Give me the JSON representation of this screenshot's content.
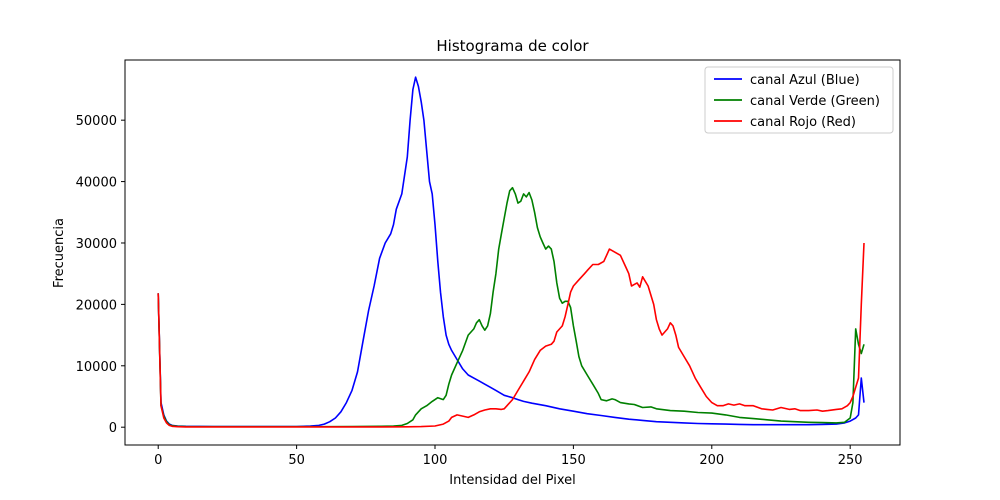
{
  "chart_data": {
    "type": "line",
    "title": "Histograma de color",
    "xlabel": "Intensidad del Pixel",
    "ylabel": "Frecuencia",
    "xlim": [
      -12,
      268
    ],
    "ylim": [
      -2900,
      59800
    ],
    "xticks": [
      0,
      50,
      100,
      150,
      200,
      250
    ],
    "yticks": [
      0,
      10000,
      20000,
      30000,
      40000,
      50000
    ],
    "grid": false,
    "legend_position": "top-right",
    "series": [
      {
        "name": "canal Azul (Blue)",
        "color": "#0000ff",
        "points": [
          [
            0,
            21800
          ],
          [
            1,
            4000
          ],
          [
            2,
            2000
          ],
          [
            3,
            1000
          ],
          [
            4,
            500
          ],
          [
            5,
            300
          ],
          [
            7,
            200
          ],
          [
            10,
            150
          ],
          [
            20,
            100
          ],
          [
            30,
            100
          ],
          [
            40,
            100
          ],
          [
            50,
            120
          ],
          [
            55,
            200
          ],
          [
            58,
            300
          ],
          [
            60,
            500
          ],
          [
            62,
            900
          ],
          [
            64,
            1500
          ],
          [
            66,
            2500
          ],
          [
            68,
            4000
          ],
          [
            70,
            6000
          ],
          [
            72,
            9000
          ],
          [
            74,
            14000
          ],
          [
            76,
            19000
          ],
          [
            78,
            23000
          ],
          [
            80,
            27500
          ],
          [
            82,
            30000
          ],
          [
            84,
            31500
          ],
          [
            85,
            33000
          ],
          [
            86,
            35500
          ],
          [
            88,
            38000
          ],
          [
            90,
            44000
          ],
          [
            91,
            50000
          ],
          [
            92,
            55000
          ],
          [
            93,
            57000
          ],
          [
            94,
            55500
          ],
          [
            95,
            53000
          ],
          [
            96,
            50000
          ],
          [
            97,
            45000
          ],
          [
            98,
            40000
          ],
          [
            99,
            38000
          ],
          [
            100,
            33000
          ],
          [
            101,
            27000
          ],
          [
            102,
            22000
          ],
          [
            103,
            18000
          ],
          [
            104,
            15000
          ],
          [
            105,
            13500
          ],
          [
            106,
            12500
          ],
          [
            108,
            11000
          ],
          [
            110,
            9500
          ],
          [
            112,
            8500
          ],
          [
            114,
            8000
          ],
          [
            116,
            7500
          ],
          [
            118,
            7000
          ],
          [
            120,
            6500
          ],
          [
            122,
            6000
          ],
          [
            125,
            5200
          ],
          [
            128,
            4800
          ],
          [
            130,
            4500
          ],
          [
            132,
            4200
          ],
          [
            135,
            3900
          ],
          [
            140,
            3500
          ],
          [
            145,
            3000
          ],
          [
            150,
            2600
          ],
          [
            155,
            2200
          ],
          [
            160,
            1900
          ],
          [
            165,
            1600
          ],
          [
            170,
            1300
          ],
          [
            175,
            1100
          ],
          [
            180,
            900
          ],
          [
            185,
            800
          ],
          [
            190,
            700
          ],
          [
            195,
            600
          ],
          [
            200,
            550
          ],
          [
            205,
            500
          ],
          [
            210,
            450
          ],
          [
            215,
            400
          ],
          [
            220,
            400
          ],
          [
            225,
            400
          ],
          [
            230,
            400
          ],
          [
            235,
            400
          ],
          [
            240,
            450
          ],
          [
            245,
            500
          ],
          [
            248,
            700
          ],
          [
            250,
            1000
          ],
          [
            252,
            1500
          ],
          [
            253,
            2000
          ],
          [
            254,
            8000
          ],
          [
            255,
            4000
          ]
        ]
      },
      {
        "name": "canal Verde (Green)",
        "color": "#008000",
        "points": [
          [
            0,
            21800
          ],
          [
            1,
            3500
          ],
          [
            2,
            1800
          ],
          [
            3,
            900
          ],
          [
            4,
            400
          ],
          [
            5,
            250
          ],
          [
            7,
            150
          ],
          [
            10,
            100
          ],
          [
            20,
            80
          ],
          [
            30,
            80
          ],
          [
            40,
            80
          ],
          [
            50,
            80
          ],
          [
            60,
            80
          ],
          [
            70,
            100
          ],
          [
            80,
            150
          ],
          [
            85,
            200
          ],
          [
            88,
            300
          ],
          [
            90,
            600
          ],
          [
            92,
            1200
          ],
          [
            93,
            2000
          ],
          [
            95,
            3000
          ],
          [
            97,
            3500
          ],
          [
            99,
            4200
          ],
          [
            101,
            4800
          ],
          [
            103,
            4500
          ],
          [
            104,
            5200
          ],
          [
            105,
            7000
          ],
          [
            106,
            8500
          ],
          [
            108,
            10500
          ],
          [
            110,
            12500
          ],
          [
            112,
            15000
          ],
          [
            114,
            16000
          ],
          [
            115,
            17000
          ],
          [
            116,
            17500
          ],
          [
            117,
            16500
          ],
          [
            118,
            15800
          ],
          [
            119,
            16500
          ],
          [
            120,
            18500
          ],
          [
            121,
            22000
          ],
          [
            122,
            25000
          ],
          [
            123,
            29000
          ],
          [
            124,
            31500
          ],
          [
            125,
            34000
          ],
          [
            126,
            36500
          ],
          [
            127,
            38500
          ],
          [
            128,
            39000
          ],
          [
            129,
            38000
          ],
          [
            130,
            36500
          ],
          [
            131,
            36800
          ],
          [
            132,
            38000
          ],
          [
            133,
            37500
          ],
          [
            134,
            38200
          ],
          [
            135,
            37000
          ],
          [
            136,
            35000
          ],
          [
            137,
            32500
          ],
          [
            138,
            31000
          ],
          [
            139,
            30000
          ],
          [
            140,
            29000
          ],
          [
            141,
            29500
          ],
          [
            142,
            29000
          ],
          [
            143,
            27000
          ],
          [
            144,
            23500
          ],
          [
            145,
            21000
          ],
          [
            146,
            20200
          ],
          [
            147,
            20500
          ],
          [
            148,
            20500
          ],
          [
            149,
            19500
          ],
          [
            150,
            16500
          ],
          [
            151,
            14000
          ],
          [
            152,
            11500
          ],
          [
            153,
            10000
          ],
          [
            155,
            8500
          ],
          [
            157,
            7000
          ],
          [
            159,
            5500
          ],
          [
            160,
            4500
          ],
          [
            162,
            4300
          ],
          [
            164,
            4600
          ],
          [
            165,
            4500
          ],
          [
            167,
            4000
          ],
          [
            170,
            3800
          ],
          [
            172,
            3700
          ],
          [
            175,
            3200
          ],
          [
            178,
            3300
          ],
          [
            180,
            3000
          ],
          [
            185,
            2700
          ],
          [
            190,
            2600
          ],
          [
            195,
            2400
          ],
          [
            200,
            2300
          ],
          [
            205,
            2000
          ],
          [
            210,
            1600
          ],
          [
            215,
            1400
          ],
          [
            220,
            1200
          ],
          [
            225,
            1000
          ],
          [
            230,
            900
          ],
          [
            235,
            800
          ],
          [
            240,
            750
          ],
          [
            245,
            700
          ],
          [
            248,
            800
          ],
          [
            250,
            1500
          ],
          [
            251,
            4000
          ],
          [
            252,
            16000
          ],
          [
            253,
            13500
          ],
          [
            254,
            12000
          ],
          [
            255,
            13500
          ]
        ]
      },
      {
        "name": "canal Rojo (Red)",
        "color": "#ff0000",
        "points": [
          [
            0,
            21800
          ],
          [
            1,
            3500
          ],
          [
            2,
            1500
          ],
          [
            3,
            700
          ],
          [
            4,
            300
          ],
          [
            5,
            150
          ],
          [
            7,
            80
          ],
          [
            10,
            50
          ],
          [
            20,
            40
          ],
          [
            30,
            40
          ],
          [
            40,
            40
          ],
          [
            50,
            40
          ],
          [
            60,
            40
          ],
          [
            70,
            40
          ],
          [
            80,
            50
          ],
          [
            90,
            60
          ],
          [
            95,
            100
          ],
          [
            100,
            200
          ],
          [
            103,
            500
          ],
          [
            105,
            1000
          ],
          [
            106,
            1600
          ],
          [
            108,
            2000
          ],
          [
            110,
            1800
          ],
          [
            112,
            1600
          ],
          [
            114,
            2000
          ],
          [
            116,
            2500
          ],
          [
            118,
            2800
          ],
          [
            120,
            3000
          ],
          [
            122,
            3000
          ],
          [
            124,
            2900
          ],
          [
            125,
            3000
          ],
          [
            126,
            3500
          ],
          [
            128,
            4500
          ],
          [
            130,
            6000
          ],
          [
            132,
            7500
          ],
          [
            134,
            9000
          ],
          [
            136,
            11000
          ],
          [
            138,
            12500
          ],
          [
            140,
            13200
          ],
          [
            142,
            13500
          ],
          [
            143,
            14000
          ],
          [
            144,
            15500
          ],
          [
            145,
            16000
          ],
          [
            146,
            16500
          ],
          [
            147,
            18000
          ],
          [
            148,
            20000
          ],
          [
            149,
            22000
          ],
          [
            150,
            23000
          ],
          [
            152,
            24000
          ],
          [
            154,
            25000
          ],
          [
            155,
            25500
          ],
          [
            157,
            26500
          ],
          [
            159,
            26500
          ],
          [
            161,
            27000
          ],
          [
            162,
            28000
          ],
          [
            163,
            29000
          ],
          [
            165,
            28500
          ],
          [
            167,
            28000
          ],
          [
            169,
            26000
          ],
          [
            170,
            25000
          ],
          [
            171,
            23000
          ],
          [
            173,
            23500
          ],
          [
            174,
            22800
          ],
          [
            175,
            24500
          ],
          [
            177,
            23000
          ],
          [
            179,
            20000
          ],
          [
            180,
            17500
          ],
          [
            181,
            16000
          ],
          [
            182,
            15000
          ],
          [
            184,
            16000
          ],
          [
            185,
            17000
          ],
          [
            186,
            16500
          ],
          [
            187,
            15000
          ],
          [
            188,
            13000
          ],
          [
            190,
            11500
          ],
          [
            192,
            10000
          ],
          [
            194,
            8000
          ],
          [
            196,
            6500
          ],
          [
            198,
            5000
          ],
          [
            200,
            4000
          ],
          [
            202,
            3500
          ],
          [
            204,
            3500
          ],
          [
            206,
            3800
          ],
          [
            208,
            3600
          ],
          [
            210,
            3800
          ],
          [
            212,
            3500
          ],
          [
            215,
            3500
          ],
          [
            218,
            3000
          ],
          [
            220,
            2900
          ],
          [
            222,
            2800
          ],
          [
            225,
            3200
          ],
          [
            228,
            2900
          ],
          [
            230,
            3000
          ],
          [
            232,
            2700
          ],
          [
            235,
            2700
          ],
          [
            238,
            2800
          ],
          [
            240,
            2600
          ],
          [
            242,
            2700
          ],
          [
            245,
            2900
          ],
          [
            247,
            3000
          ],
          [
            249,
            3500
          ],
          [
            250,
            4000
          ],
          [
            251,
            5000
          ],
          [
            252,
            6500
          ],
          [
            253,
            8000
          ],
          [
            254,
            20000
          ],
          [
            255,
            30000
          ]
        ]
      }
    ]
  }
}
